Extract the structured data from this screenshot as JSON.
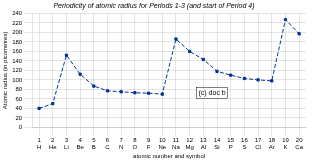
{
  "chart_data": {
    "type": "line",
    "title": "Periodicity of atomic radius for Periods 1-3 (and start of Period 4)",
    "xlabel": "atomic number and symbol",
    "ylabel": "Atomic radius (in picometres)",
    "x": [
      1,
      2,
      3,
      4,
      5,
      6,
      7,
      8,
      9,
      10,
      11,
      12,
      13,
      14,
      15,
      16,
      17,
      18,
      19,
      20
    ],
    "values": [
      40,
      50,
      152,
      112,
      87,
      77,
      75,
      73,
      72,
      70,
      186,
      160,
      143,
      118,
      110,
      103,
      100,
      98,
      227,
      197
    ],
    "color": "#003399",
    "marker": "square",
    "line_style": "dashed",
    "xlim": [
      0.5,
      20.5
    ],
    "xticks": [
      1,
      2,
      3,
      4,
      5,
      6,
      7,
      8,
      9,
      10,
      11,
      12,
      13,
      14,
      15,
      16,
      17,
      18,
      19,
      20
    ],
    "ylim": [
      0,
      240
    ],
    "yticks": [
      0,
      20,
      40,
      60,
      80,
      100,
      120,
      140,
      160,
      180,
      200,
      220,
      240
    ],
    "grid": true,
    "annotations": [
      {
        "x": 1,
        "text": "H"
      },
      {
        "x": 2,
        "text": "He"
      },
      {
        "x": 3,
        "text": "Li"
      },
      {
        "x": 4,
        "text": "Be"
      },
      {
        "x": 5,
        "text": "B"
      },
      {
        "x": 6,
        "text": "C"
      },
      {
        "x": 7,
        "text": "N"
      },
      {
        "x": 8,
        "text": "O"
      },
      {
        "x": 9,
        "text": "F"
      },
      {
        "x": 10,
        "text": "Ne"
      },
      {
        "x": 11,
        "text": "Na"
      },
      {
        "x": 12,
        "text": "Mg"
      },
      {
        "x": 13,
        "text": "Al"
      },
      {
        "x": 14,
        "text": "Si"
      },
      {
        "x": 15,
        "text": "P"
      },
      {
        "x": 16,
        "text": "S"
      },
      {
        "x": 17,
        "text": "Cl"
      },
      {
        "x": 18,
        "text": "Ar"
      },
      {
        "x": 19,
        "text": "K"
      },
      {
        "x": 20,
        "text": "Ca"
      },
      {
        "text": "(c) doc b"
      }
    ]
  }
}
